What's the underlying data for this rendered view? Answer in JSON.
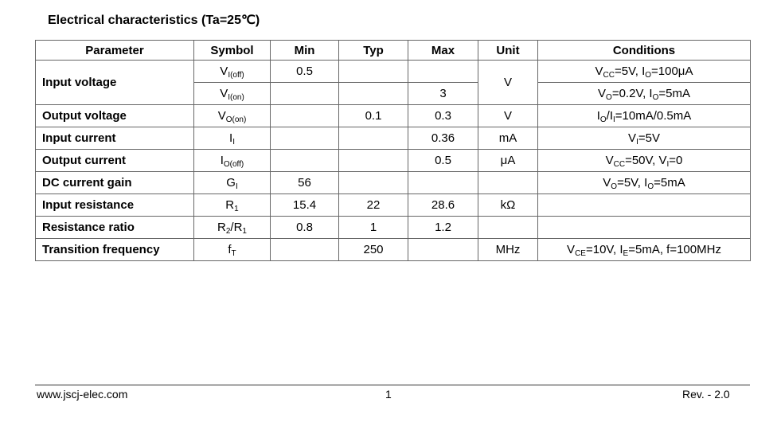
{
  "header": {
    "title": "Electrical characteristics (Ta=25℃)"
  },
  "table": {
    "columns": [
      "Parameter",
      "Symbol",
      "Min",
      "Typ",
      "Max",
      "Unit",
      "Conditions"
    ],
    "groups": [
      {
        "parameter": "Input voltage",
        "unit": "V",
        "lines": [
          {
            "symbol": [
              "V",
              "I(off)"
            ],
            "min": 0.5,
            "conditions": [
              "V",
              "CC",
              "=5V, I",
              "O",
              "=100μA"
            ]
          },
          {
            "symbol": [
              "V",
              "I(on)"
            ],
            "max": 3,
            "conditions": [
              "V",
              "O",
              "=0.2V, I",
              "O",
              "=5mA"
            ]
          }
        ]
      },
      {
        "parameter": "Output voltage",
        "unit": "V",
        "lines": [
          {
            "symbol": [
              "V",
              "O(on)"
            ],
            "typ": 0.1,
            "max": 0.3,
            "conditions": [
              "I",
              "O",
              "/I",
              "I",
              "=10mA/0.5mA"
            ]
          }
        ]
      },
      {
        "parameter": "Input current",
        "unit": "mA",
        "lines": [
          {
            "symbol": [
              "I",
              "I"
            ],
            "max": 0.36,
            "conditions": [
              "V",
              "I",
              "=5V"
            ]
          }
        ]
      },
      {
        "parameter": "Output current",
        "unit": "μA",
        "lines": [
          {
            "symbol": [
              "I",
              "O(off)"
            ],
            "max": 0.5,
            "conditions": [
              "V",
              "CC",
              "=50V, V",
              "I",
              "=0"
            ]
          }
        ]
      },
      {
        "parameter": "DC current gain",
        "lines": [
          {
            "symbol": [
              "G",
              "I"
            ],
            "min": 56,
            "conditions": [
              "V",
              "O",
              "=5V, I",
              "O",
              "=5mA"
            ]
          }
        ]
      },
      {
        "parameter": "Input resistance",
        "unit": "kΩ",
        "lines": [
          {
            "symbol": [
              "R",
              "1"
            ],
            "min": 15.4,
            "typ": 22,
            "max": 28.6
          }
        ]
      },
      {
        "parameter": "Resistance ratio",
        "lines": [
          {
            "symbol": [
              "R",
              "2",
              "/R",
              "1"
            ],
            "min": 0.8,
            "typ": 1,
            "max": 1.2
          }
        ]
      },
      {
        "parameter": "Transition frequency",
        "unit": "MHz",
        "lines": [
          {
            "symbol": [
              "f",
              "T"
            ],
            "typ": 250,
            "conditions": [
              "V",
              "CE",
              "=10V, I",
              "E",
              "=5mA, f=100MHz"
            ]
          }
        ]
      }
    ]
  },
  "footer": {
    "url": "www.jscj-elec.com",
    "page": 1,
    "revision": "Rev. - 2.0"
  }
}
